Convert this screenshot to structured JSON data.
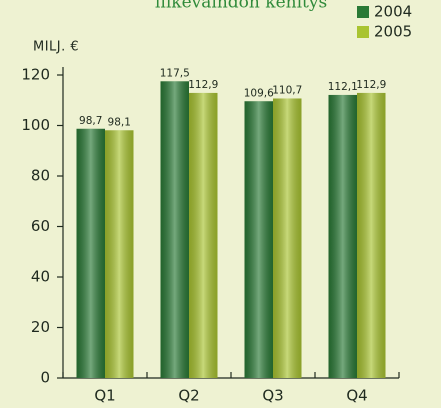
{
  "chart_data": {
    "type": "bar",
    "title": "liikevaihdon kehitys",
    "y_label": "MILJ. €",
    "categories": [
      "Q1",
      "Q2",
      "Q3",
      "Q4"
    ],
    "series": [
      {
        "name": "2004",
        "color": "#2a7a36",
        "values": [
          98.7,
          117.5,
          109.6,
          112.1
        ],
        "value_labels": [
          "98,7",
          "117,5",
          "109,6",
          "112,1"
        ]
      },
      {
        "name": "2005",
        "color": "#a9c431",
        "values": [
          98.1,
          112.9,
          110.7,
          112.9
        ],
        "value_labels": [
          "98,1",
          "112,9",
          "110,7",
          "112,9"
        ]
      }
    ],
    "ylim": [
      0,
      120
    ],
    "yticks": [
      0,
      20,
      40,
      60,
      80,
      100,
      120
    ],
    "legend": "top-right"
  }
}
